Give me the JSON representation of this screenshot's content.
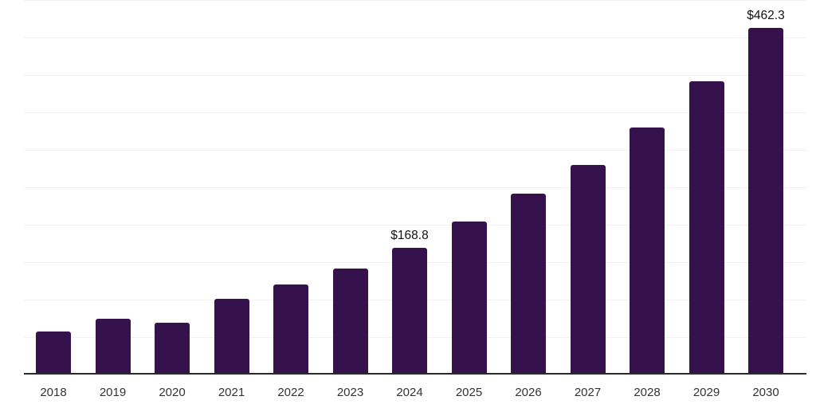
{
  "chart_data": {
    "type": "bar",
    "title": "",
    "xlabel": "",
    "ylabel": "",
    "categories": [
      "2018",
      "2019",
      "2020",
      "2021",
      "2022",
      "2023",
      "2024",
      "2025",
      "2026",
      "2027",
      "2028",
      "2029",
      "2030"
    ],
    "values": [
      57,
      74,
      69.5,
      101,
      120.5,
      142,
      168.8,
      204,
      241.5,
      280,
      330,
      392,
      462.3
    ],
    "bar_labels": [
      "",
      "",
      "",
      "",
      "",
      "",
      "$168.8",
      "",
      "",
      "",
      "",
      "",
      "$462.3"
    ],
    "ylim": [
      0,
      500
    ],
    "grid": true,
    "gridline_interval": 50,
    "legend": false,
    "colors": {
      "bar": "#35124C",
      "axis_line": "#2b2b2b",
      "gridline": "#f2f2f2",
      "tick_label": "#333333",
      "value_label": "#111111",
      "background": "#ffffff"
    }
  }
}
